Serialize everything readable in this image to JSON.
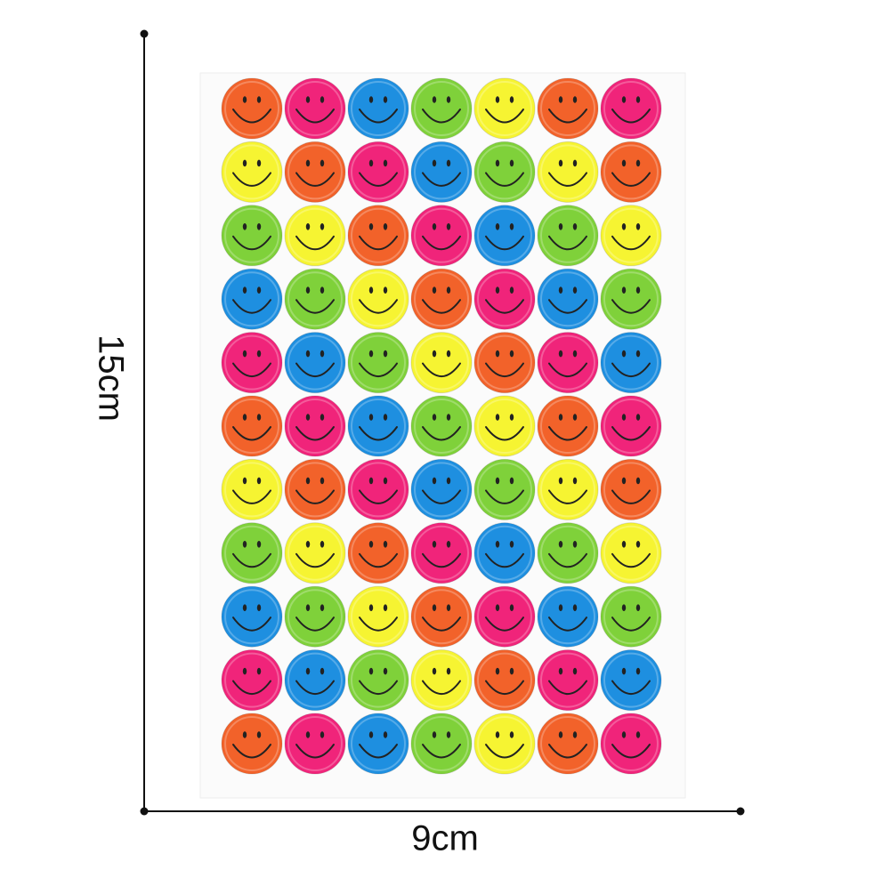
{
  "dimensions": {
    "height": "15cm",
    "width": "9cm"
  }
}
